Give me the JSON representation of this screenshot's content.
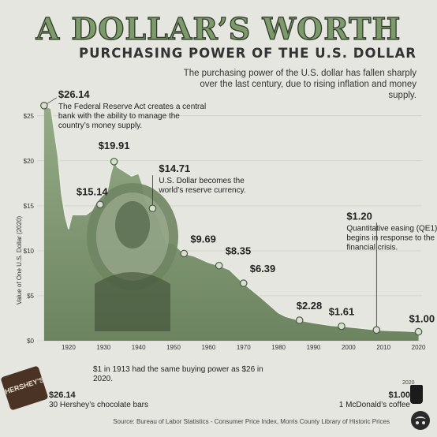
{
  "header": {
    "title": "A DOLLAR’S WORTH",
    "subtitle": "PURCHASING POWER OF THE U.S. DOLLAR",
    "description": "The purchasing power of the U.S. dollar has fallen sharply over the last century, due to rising inflation and money supply."
  },
  "chart_data": {
    "type": "area",
    "ylabel": "Value of One U.S. Dollar (2020)",
    "ylim": [
      0,
      27
    ],
    "xlim": [
      1911,
      2021
    ],
    "x_ticks": [
      "1920",
      "1930",
      "1940",
      "1950",
      "1960",
      "1970",
      "1980",
      "1990",
      "2000",
      "2010",
      "2020"
    ],
    "y_ticks": [
      "$0",
      "$5",
      "$10",
      "$15",
      "$20",
      "$25"
    ],
    "x": [
      1913,
      1915,
      1917,
      1918,
      1919,
      1920,
      1921,
      1925,
      1929,
      1931,
      1932,
      1933,
      1934,
      1936,
      1938,
      1940,
      1941,
      1942,
      1944,
      1946,
      1947,
      1948,
      1950,
      1953,
      1956,
      1960,
      1963,
      1966,
      1970,
      1975,
      1980,
      1982,
      1986,
      1990,
      1995,
      1998,
      2003,
      2008,
      2012,
      2016,
      2020
    ],
    "y": [
      26.14,
      25.8,
      20.5,
      16.3,
      13.9,
      12.4,
      14.0,
      14.0,
      15.14,
      16.5,
      18.5,
      19.91,
      19.3,
      18.8,
      18.3,
      18.6,
      17.5,
      15.5,
      14.71,
      13.3,
      11.7,
      10.9,
      10.8,
      9.69,
      9.4,
      8.7,
      8.35,
      7.9,
      6.39,
      4.8,
      3.1,
      2.7,
      2.28,
      2.0,
      1.7,
      1.61,
      1.43,
      1.2,
      1.13,
      1.09,
      1.0
    ],
    "annotations": [
      {
        "year": 1913,
        "value": "$26.14",
        "text": [
          "The Federal Reserve Act creates a central",
          "bank with the ability to manage the",
          "country’s money supply."
        ]
      },
      {
        "year": 1929,
        "value": "$15.14",
        "text": []
      },
      {
        "year": 1933,
        "value": "$19.91",
        "text": []
      },
      {
        "year": 1944,
        "value": "$14.71",
        "text": [
          "U.S. Dollar becomes the",
          "world’s reserve currency."
        ]
      },
      {
        "year": 1953,
        "value": "$9.69",
        "text": []
      },
      {
        "year": 1963,
        "value": "$8.35",
        "text": []
      },
      {
        "year": 1970,
        "value": "$6.39",
        "text": []
      },
      {
        "year": 1986,
        "value": "$2.28",
        "text": []
      },
      {
        "year": 1998,
        "value": "$1.61",
        "text": []
      },
      {
        "year": 2008,
        "value": "$1.20",
        "text": [
          "Quantitative easing (QE1)",
          "begins in response to the",
          "financial crisis."
        ]
      },
      {
        "year": 2020,
        "value": "$1.00",
        "text": []
      }
    ],
    "colors": {
      "area": "#8fa582",
      "area_dark": "#5d7350",
      "marker_fill": "#d9ded2",
      "marker_stroke": "#4a5a42"
    }
  },
  "footer": {
    "left_text": "$1 in 1913 had the same buying power as $26 in 2020.",
    "left_value": "$26.14",
    "left_label": "30 Hershey’s chocolate bars",
    "hershey_text": "HERSHEY'S",
    "right_year": "2020",
    "right_value": "$1.00",
    "right_label": "1 McDonald’s coffee",
    "source": "Source: Bureau of Labor Statistics - Consumer Price Index, Morris County Library of Historic Prices"
  }
}
